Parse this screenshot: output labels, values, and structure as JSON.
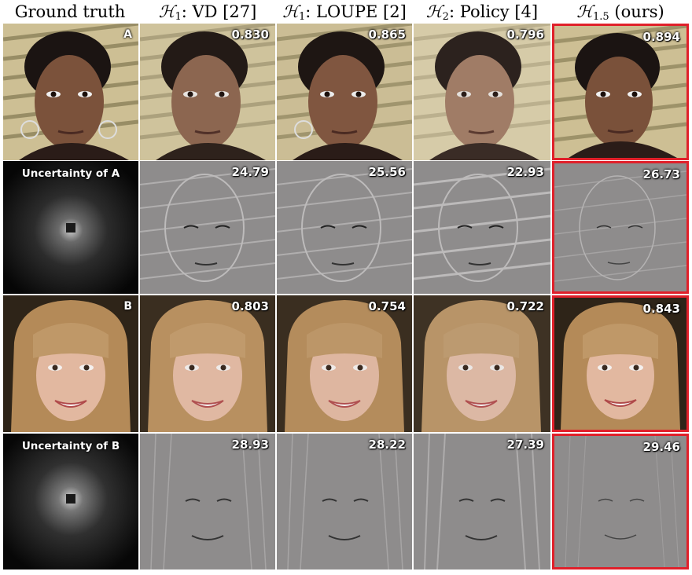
{
  "columns": [
    {
      "id": "gt",
      "label": "Ground truth"
    },
    {
      "id": "vd",
      "label": "H1: VD [27]"
    },
    {
      "id": "loupe",
      "label": "H1: LOUPE [2]"
    },
    {
      "id": "policy",
      "label": "H2: Policy [4]"
    },
    {
      "id": "ours",
      "label": "H1.5 (ours)"
    }
  ],
  "header": {
    "gt": "Ground truth",
    "vd": {
      "sym": "ℋ",
      "sub": "1",
      "text": ": VD [27]"
    },
    "loupe": {
      "sym": "ℋ",
      "sub": "1",
      "text": ": LOUPE [2]"
    },
    "policy": {
      "sym": "ℋ",
      "sub": "2",
      "text": ": Policy [4]"
    },
    "ours": {
      "sym": "ℋ",
      "sub": "1.5",
      "text": " (ours)"
    }
  },
  "rows": [
    {
      "type": "image",
      "subject": "A",
      "tag": "A",
      "values": {
        "vd": "0.830",
        "loupe": "0.865",
        "policy": "0.796",
        "ours": "0.894"
      }
    },
    {
      "type": "error",
      "uncertainty_label": "Uncertainty of A",
      "values": {
        "vd": "24.79",
        "loupe": "25.56",
        "policy": "22.93",
        "ours": "26.73"
      }
    },
    {
      "type": "image",
      "subject": "B",
      "tag": "B",
      "values": {
        "vd": "0.803",
        "loupe": "0.754",
        "policy": "0.722",
        "ours": "0.843"
      }
    },
    {
      "type": "error",
      "uncertainty_label": "Uncertainty of B",
      "values": {
        "vd": "28.93",
        "loupe": "28.22",
        "policy": "27.39",
        "ours": "29.46"
      }
    }
  ],
  "highlight_column": "ours",
  "colors": {
    "highlight": "#e0202a",
    "text_overlay": "#ffffff"
  }
}
